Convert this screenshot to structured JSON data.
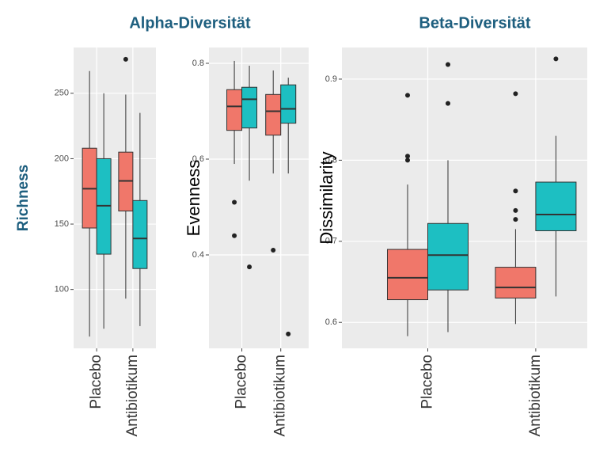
{
  "headings": [
    "Alpha-Diversität",
    "Beta-Diversität"
  ],
  "chart_data": [
    {
      "type": "box",
      "ylabel": "Richness",
      "categories": [
        "Placebo",
        "Antibiotikum"
      ],
      "ylim": [
        55,
        285
      ],
      "yticks": [
        100,
        150,
        200,
        250
      ],
      "series": [
        {
          "color": "#f0776a",
          "boxes": [
            {
              "low": 64,
              "q1": 147,
              "median": 177,
              "q3": 208,
              "high": 267,
              "outliers": []
            },
            {
              "low": 93,
              "q1": 160,
              "median": 183,
              "q3": 205,
              "high": 249,
              "outliers": [
                276
              ]
            }
          ]
        },
        {
          "color": "#1dbfc2",
          "boxes": [
            {
              "low": 70,
              "q1": 127,
              "median": 164,
              "q3": 200,
              "high": 250,
              "outliers": []
            },
            {
              "low": 72,
              "q1": 116,
              "median": 139,
              "q3": 168,
              "high": 235,
              "outliers": []
            }
          ]
        }
      ]
    },
    {
      "type": "box",
      "ylabel": "Evenness",
      "categories": [
        "Placebo",
        "Antibiotikum"
      ],
      "ylim": [
        0.205,
        0.833
      ],
      "yticks": [
        0.4,
        0.6,
        0.8
      ],
      "series": [
        {
          "color": "#f0776a",
          "boxes": [
            {
              "low": 0.59,
              "q1": 0.66,
              "median": 0.71,
              "q3": 0.745,
              "high": 0.805,
              "outliers": [
                0.51,
                0.44
              ]
            },
            {
              "low": 0.57,
              "q1": 0.65,
              "median": 0.7,
              "q3": 0.735,
              "high": 0.785,
              "outliers": [
                0.41
              ]
            }
          ]
        },
        {
          "color": "#1dbfc2",
          "boxes": [
            {
              "low": 0.555,
              "q1": 0.665,
              "median": 0.725,
              "q3": 0.75,
              "high": 0.795,
              "outliers": [
                0.375
              ]
            },
            {
              "low": 0.57,
              "q1": 0.675,
              "median": 0.705,
              "q3": 0.755,
              "high": 0.77,
              "outliers": [
                0.235
              ]
            }
          ]
        }
      ]
    },
    {
      "type": "box",
      "ylabel": "Dissimilarity",
      "categories": [
        "Placebo",
        "Antibiotikum"
      ],
      "ylim": [
        0.568,
        0.939
      ],
      "yticks": [
        0.6,
        0.7,
        0.8,
        0.9
      ],
      "series": [
        {
          "color": "#f0776a",
          "boxes": [
            {
              "low": 0.583,
              "q1": 0.628,
              "median": 0.655,
              "q3": 0.69,
              "high": 0.77,
              "outliers": [
                0.88,
                0.805,
                0.8
              ]
            },
            {
              "low": 0.598,
              "q1": 0.63,
              "median": 0.643,
              "q3": 0.668,
              "high": 0.715,
              "outliers": [
                0.882,
                0.762,
                0.738,
                0.727
              ]
            }
          ]
        },
        {
          "color": "#1dbfc2",
          "boxes": [
            {
              "low": 0.588,
              "q1": 0.64,
              "median": 0.683,
              "q3": 0.722,
              "high": 0.8,
              "outliers": [
                0.918,
                0.87
              ]
            },
            {
              "low": 0.632,
              "q1": 0.713,
              "median": 0.733,
              "q3": 0.773,
              "high": 0.83,
              "outliers": [
                0.925
              ]
            }
          ]
        }
      ]
    }
  ]
}
